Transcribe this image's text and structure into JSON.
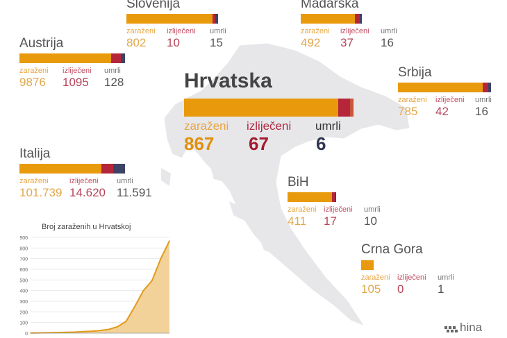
{
  "labels": {
    "infected": "zaraženi",
    "recovered": "izliječeni",
    "deaths": "umrli"
  },
  "colors": {
    "infected": "#E89A0C",
    "recovered": "#B5263B",
    "deaths": "#3E4366",
    "map": "#E7E7EA"
  },
  "countries": {
    "slovenija": {
      "name": "Slovenija",
      "infected": "802",
      "recovered": "10",
      "deaths": "15"
    },
    "madarska": {
      "name": "Mađarska",
      "infected": "492",
      "recovered": "37",
      "deaths": "16"
    },
    "austrija": {
      "name": "Austrija",
      "infected": "9876",
      "recovered": "1095",
      "deaths": "128"
    },
    "hrvatska": {
      "name": "Hrvatska",
      "infected": "867",
      "recovered": "67",
      "deaths": "6"
    },
    "srbija": {
      "name": "Srbija",
      "infected": "785",
      "recovered": "42",
      "deaths": "16"
    },
    "italija": {
      "name": "Italija",
      "infected": "101.739",
      "recovered": "14.620",
      "deaths": "11.591"
    },
    "bih": {
      "name": "BiH",
      "infected": "411",
      "recovered": "17",
      "deaths": "10"
    },
    "crna_gora": {
      "name": "Crna Gora",
      "infected": "105",
      "recovered": "0",
      "deaths": "1"
    }
  },
  "logo": {
    "text": "hina"
  },
  "chart_data": {
    "type": "area",
    "title": "Broj zaraženih u Hrvatskoj",
    "xlabel": "",
    "ylabel": "",
    "ylim": [
      0,
      900
    ],
    "yticks": [
      "0",
      "100",
      "200",
      "300",
      "400",
      "500",
      "600",
      "700",
      "800",
      "900"
    ],
    "x": [
      0,
      5,
      10,
      15,
      18,
      20,
      22,
      24,
      26,
      28,
      30,
      32
    ],
    "values": [
      1,
      5,
      10,
      20,
      35,
      60,
      110,
      250,
      400,
      495,
      700,
      867
    ],
    "grid": true
  }
}
